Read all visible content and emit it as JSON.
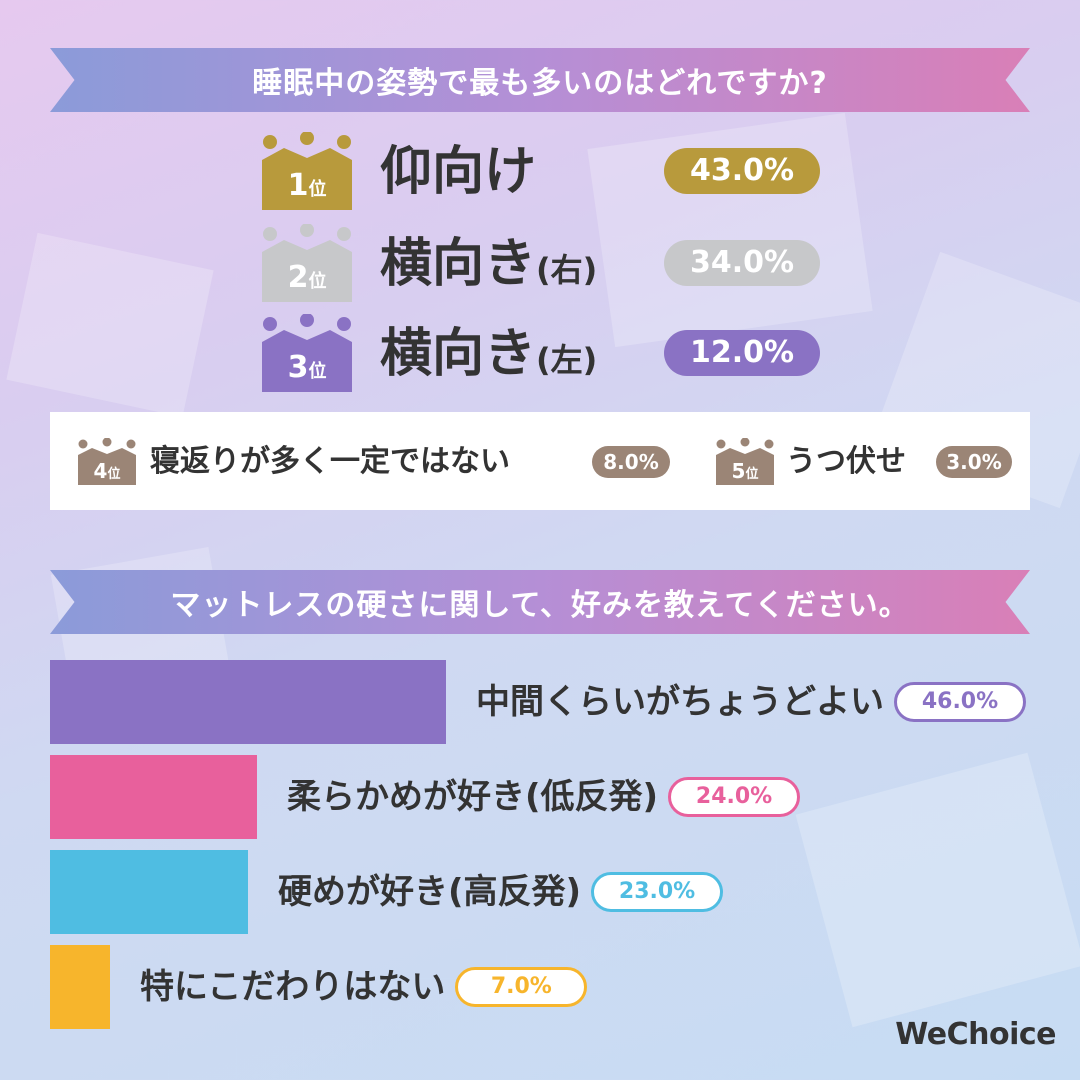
{
  "logo_text": "WeChoice",
  "chart_data": [
    {
      "type": "table",
      "title": "睡眠中の姿勢で最も多いのはどれですか?",
      "rows": [
        {
          "rank": "1",
          "rank_suffix": "位",
          "label": "仰向け",
          "sub": "",
          "value_text": "43.0%",
          "value": 43.0,
          "color": "#b89a3c"
        },
        {
          "rank": "2",
          "rank_suffix": "位",
          "label": "横向き",
          "sub": "(右)",
          "value_text": "34.0%",
          "value": 34.0,
          "color": "#c7c8ca"
        },
        {
          "rank": "3",
          "rank_suffix": "位",
          "label": "横向き",
          "sub": "(左)",
          "value_text": "12.0%",
          "value": 12.0,
          "color": "#8a72c4"
        },
        {
          "rank": "4",
          "rank_suffix": "位",
          "label": "寝返りが多く一定ではない",
          "sub": "",
          "value_text": "8.0%",
          "value": 8.0,
          "color": "#9b8576"
        },
        {
          "rank": "5",
          "rank_suffix": "位",
          "label": "うつ伏せ",
          "sub": "",
          "value_text": "3.0%",
          "value": 3.0,
          "color": "#9b8576"
        }
      ]
    },
    {
      "type": "bar",
      "orientation": "horizontal",
      "title": "マットレスの硬さに関して、好みを教えてください。",
      "categories": [
        "中間くらいがちょうどよい",
        "柔らかめが好き(低反発)",
        "硬めが好き(高反発)",
        "特にこだわりはない"
      ],
      "values": [
        46.0,
        24.0,
        23.0,
        7.0
      ],
      "value_labels": [
        "46.0%",
        "24.0%",
        "23.0%",
        "7.0%"
      ],
      "colors": [
        "#8a72c4",
        "#e8609c",
        "#4fbde2",
        "#f7b52c"
      ],
      "xlim": [
        0,
        100
      ]
    }
  ]
}
